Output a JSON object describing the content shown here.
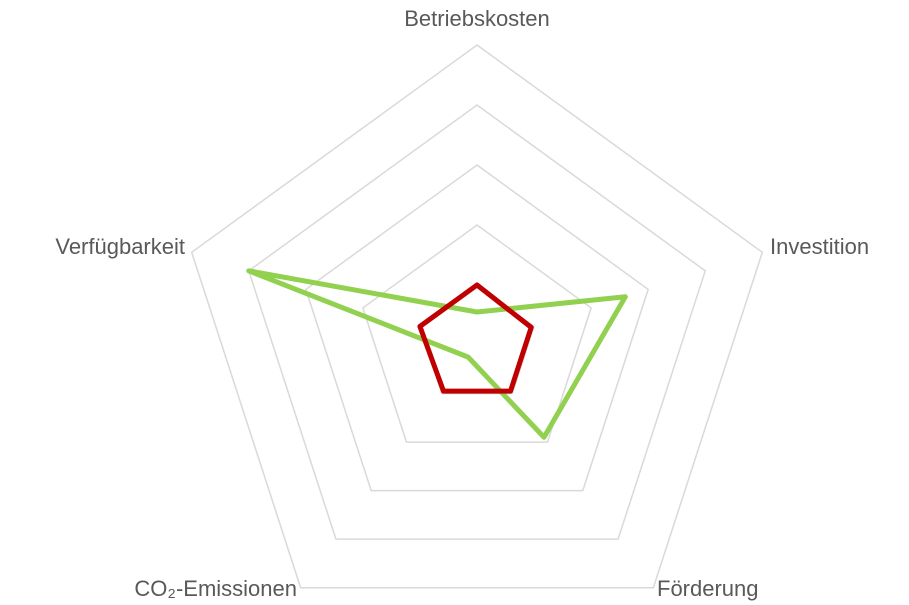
{
  "chart_data": {
    "type": "radar",
    "categories": [
      "Betriebskosten",
      "Investition",
      "Förderung",
      "CO₂-Emissionen",
      "Verfügbarkeit"
    ],
    "series": [
      {
        "color": "#92d050",
        "values": [
          0.55,
          2.6,
          1.9,
          0.25,
          4
        ]
      },
      {
        "color": "#c00000",
        "values": [
          1,
          0.95,
          0.95,
          0.95,
          1
        ]
      }
    ],
    "ylim": [
      0,
      5
    ],
    "yticks": [
      0,
      1,
      2,
      3,
      4,
      5
    ],
    "grid": true
  }
}
